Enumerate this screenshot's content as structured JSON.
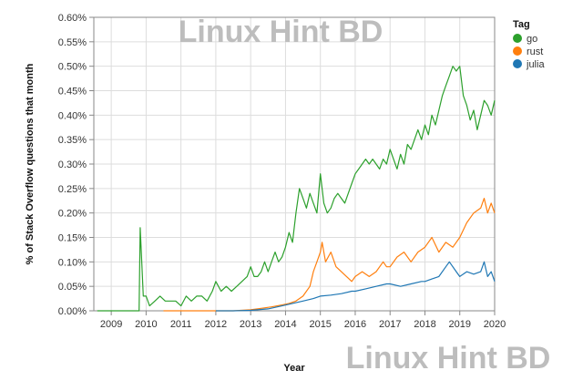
{
  "watermarks": [
    "Linux Hint BD",
    "Linux Hint BD"
  ],
  "chart_data": {
    "type": "line",
    "xlabel": "Year",
    "ylabel": "% of Stack Overflow questions that month",
    "xlim": [
      2008.5,
      2020.0
    ],
    "ylim": [
      0,
      0.6
    ],
    "xticks": [
      2009,
      2010,
      2011,
      2012,
      2013,
      2014,
      2015,
      2016,
      2017,
      2018,
      2019,
      2020
    ],
    "yticks": [
      0,
      0.05,
      0.1,
      0.15,
      0.2,
      0.25,
      0.3,
      0.35,
      0.4,
      0.45,
      0.5,
      0.55,
      0.6
    ],
    "ytick_labels": [
      "0.00%",
      "0.05%",
      "0.10%",
      "0.15%",
      "0.20%",
      "0.25%",
      "0.30%",
      "0.35%",
      "0.40%",
      "0.45%",
      "0.50%",
      "0.55%",
      "0.60%"
    ],
    "grid": true,
    "legend": {
      "title": "Tag",
      "placement": "top-right"
    },
    "series": [
      {
        "name": "go",
        "color": "#2ca02c",
        "points": [
          [
            2008.6,
            0
          ],
          [
            2009.0,
            0
          ],
          [
            2009.5,
            0
          ],
          [
            2009.8,
            0
          ],
          [
            2009.83,
            0.17
          ],
          [
            2009.92,
            0.03
          ],
          [
            2010.0,
            0.03
          ],
          [
            2010.1,
            0.01
          ],
          [
            2010.25,
            0.02
          ],
          [
            2010.4,
            0.03
          ],
          [
            2010.55,
            0.02
          ],
          [
            2010.7,
            0.02
          ],
          [
            2010.85,
            0.02
          ],
          [
            2011.0,
            0.01
          ],
          [
            2011.15,
            0.03
          ],
          [
            2011.3,
            0.02
          ],
          [
            2011.45,
            0.03
          ],
          [
            2011.6,
            0.03
          ],
          [
            2011.75,
            0.02
          ],
          [
            2011.9,
            0.04
          ],
          [
            2012.0,
            0.06
          ],
          [
            2012.15,
            0.04
          ],
          [
            2012.3,
            0.05
          ],
          [
            2012.45,
            0.04
          ],
          [
            2012.6,
            0.05
          ],
          [
            2012.75,
            0.06
          ],
          [
            2012.9,
            0.07
          ],
          [
            2013.0,
            0.09
          ],
          [
            2013.1,
            0.07
          ],
          [
            2013.2,
            0.07
          ],
          [
            2013.3,
            0.08
          ],
          [
            2013.4,
            0.1
          ],
          [
            2013.5,
            0.08
          ],
          [
            2013.6,
            0.1
          ],
          [
            2013.7,
            0.12
          ],
          [
            2013.8,
            0.1
          ],
          [
            2013.9,
            0.11
          ],
          [
            2014.0,
            0.13
          ],
          [
            2014.1,
            0.16
          ],
          [
            2014.2,
            0.14
          ],
          [
            2014.3,
            0.2
          ],
          [
            2014.4,
            0.25
          ],
          [
            2014.5,
            0.23
          ],
          [
            2014.6,
            0.21
          ],
          [
            2014.7,
            0.24
          ],
          [
            2014.8,
            0.22
          ],
          [
            2014.9,
            0.2
          ],
          [
            2015.0,
            0.28
          ],
          [
            2015.1,
            0.22
          ],
          [
            2015.2,
            0.2
          ],
          [
            2015.3,
            0.21
          ],
          [
            2015.4,
            0.23
          ],
          [
            2015.5,
            0.24
          ],
          [
            2015.6,
            0.23
          ],
          [
            2015.7,
            0.22
          ],
          [
            2015.8,
            0.24
          ],
          [
            2015.9,
            0.26
          ],
          [
            2016.0,
            0.28
          ],
          [
            2016.1,
            0.29
          ],
          [
            2016.2,
            0.3
          ],
          [
            2016.3,
            0.31
          ],
          [
            2016.4,
            0.3
          ],
          [
            2016.5,
            0.31
          ],
          [
            2016.6,
            0.3
          ],
          [
            2016.7,
            0.29
          ],
          [
            2016.8,
            0.31
          ],
          [
            2016.9,
            0.3
          ],
          [
            2017.0,
            0.33
          ],
          [
            2017.1,
            0.31
          ],
          [
            2017.2,
            0.29
          ],
          [
            2017.3,
            0.32
          ],
          [
            2017.4,
            0.3
          ],
          [
            2017.5,
            0.34
          ],
          [
            2017.6,
            0.33
          ],
          [
            2017.7,
            0.35
          ],
          [
            2017.8,
            0.37
          ],
          [
            2017.9,
            0.35
          ],
          [
            2018.0,
            0.38
          ],
          [
            2018.1,
            0.36
          ],
          [
            2018.2,
            0.4
          ],
          [
            2018.3,
            0.38
          ],
          [
            2018.4,
            0.41
          ],
          [
            2018.5,
            0.44
          ],
          [
            2018.6,
            0.46
          ],
          [
            2018.7,
            0.48
          ],
          [
            2018.8,
            0.5
          ],
          [
            2018.9,
            0.49
          ],
          [
            2019.0,
            0.5
          ],
          [
            2019.1,
            0.44
          ],
          [
            2019.2,
            0.42
          ],
          [
            2019.3,
            0.39
          ],
          [
            2019.4,
            0.41
          ],
          [
            2019.5,
            0.37
          ],
          [
            2019.6,
            0.4
          ],
          [
            2019.7,
            0.43
          ],
          [
            2019.8,
            0.42
          ],
          [
            2019.9,
            0.4
          ],
          [
            2020.0,
            0.43
          ]
        ]
      },
      {
        "name": "rust",
        "color": "#ff7f0e",
        "points": [
          [
            2010.5,
            0
          ],
          [
            2011.0,
            0
          ],
          [
            2012.0,
            0
          ],
          [
            2012.5,
            0
          ],
          [
            2013.0,
            0.002
          ],
          [
            2013.3,
            0.005
          ],
          [
            2013.6,
            0.008
          ],
          [
            2013.9,
            0.012
          ],
          [
            2014.1,
            0.015
          ],
          [
            2014.3,
            0.02
          ],
          [
            2014.5,
            0.03
          ],
          [
            2014.7,
            0.05
          ],
          [
            2014.8,
            0.08
          ],
          [
            2014.9,
            0.1
          ],
          [
            2015.0,
            0.12
          ],
          [
            2015.05,
            0.14
          ],
          [
            2015.15,
            0.1
          ],
          [
            2015.3,
            0.12
          ],
          [
            2015.45,
            0.09
          ],
          [
            2015.6,
            0.08
          ],
          [
            2015.75,
            0.07
          ],
          [
            2015.9,
            0.06
          ],
          [
            2016.0,
            0.07
          ],
          [
            2016.2,
            0.08
          ],
          [
            2016.4,
            0.07
          ],
          [
            2016.6,
            0.08
          ],
          [
            2016.8,
            0.1
          ],
          [
            2016.9,
            0.09
          ],
          [
            2017.0,
            0.09
          ],
          [
            2017.2,
            0.11
          ],
          [
            2017.4,
            0.12
          ],
          [
            2017.6,
            0.1
          ],
          [
            2017.8,
            0.12
          ],
          [
            2018.0,
            0.13
          ],
          [
            2018.2,
            0.15
          ],
          [
            2018.4,
            0.12
          ],
          [
            2018.6,
            0.14
          ],
          [
            2018.8,
            0.13
          ],
          [
            2019.0,
            0.15
          ],
          [
            2019.2,
            0.18
          ],
          [
            2019.4,
            0.2
          ],
          [
            2019.6,
            0.21
          ],
          [
            2019.7,
            0.23
          ],
          [
            2019.8,
            0.2
          ],
          [
            2019.9,
            0.22
          ],
          [
            2020.0,
            0.2
          ]
        ]
      },
      {
        "name": "julia",
        "color": "#1f77b4",
        "points": [
          [
            2012.0,
            0
          ],
          [
            2012.5,
            0
          ],
          [
            2013.0,
            0.001
          ],
          [
            2013.5,
            0.004
          ],
          [
            2013.9,
            0.01
          ],
          [
            2014.2,
            0.015
          ],
          [
            2014.5,
            0.02
          ],
          [
            2014.8,
            0.025
          ],
          [
            2015.0,
            0.03
          ],
          [
            2015.3,
            0.032
          ],
          [
            2015.6,
            0.035
          ],
          [
            2015.9,
            0.04
          ],
          [
            2016.0,
            0.04
          ],
          [
            2016.3,
            0.045
          ],
          [
            2016.6,
            0.05
          ],
          [
            2016.9,
            0.055
          ],
          [
            2017.0,
            0.055
          ],
          [
            2017.3,
            0.05
          ],
          [
            2017.6,
            0.055
          ],
          [
            2017.9,
            0.06
          ],
          [
            2018.0,
            0.06
          ],
          [
            2018.2,
            0.065
          ],
          [
            2018.4,
            0.07
          ],
          [
            2018.6,
            0.09
          ],
          [
            2018.7,
            0.1
          ],
          [
            2018.9,
            0.08
          ],
          [
            2019.0,
            0.07
          ],
          [
            2019.2,
            0.08
          ],
          [
            2019.4,
            0.075
          ],
          [
            2019.6,
            0.08
          ],
          [
            2019.7,
            0.1
          ],
          [
            2019.8,
            0.07
          ],
          [
            2019.9,
            0.08
          ],
          [
            2020.0,
            0.06
          ]
        ]
      }
    ]
  }
}
